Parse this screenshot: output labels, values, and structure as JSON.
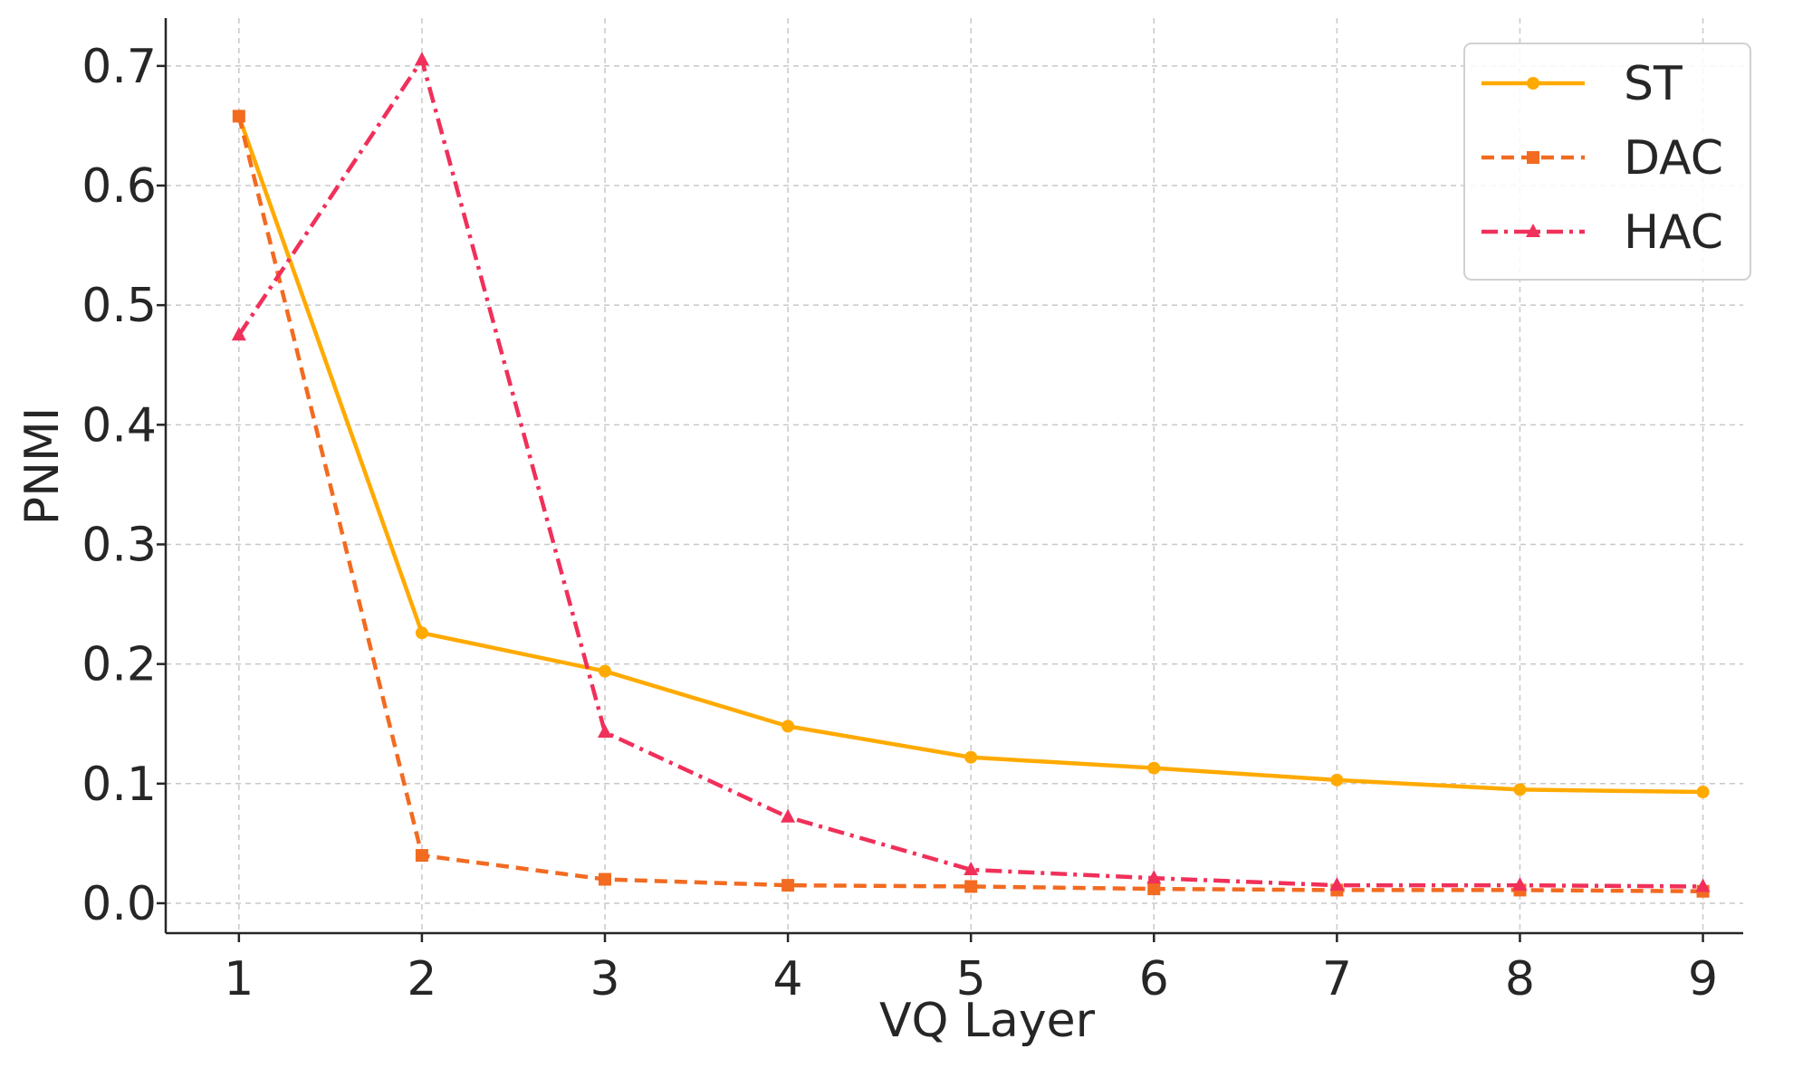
{
  "chart_data": {
    "type": "line",
    "title": "",
    "xlabel": "VQ Layer",
    "ylabel": "PNMI",
    "x": [
      1,
      2,
      3,
      4,
      5,
      6,
      7,
      8,
      9
    ],
    "xticks": [
      "1",
      "2",
      "3",
      "4",
      "5",
      "6",
      "7",
      "8",
      "9"
    ],
    "yticks": [
      "0.0",
      "0.1",
      "0.2",
      "0.3",
      "0.4",
      "0.5",
      "0.6",
      "0.7"
    ],
    "xlim": [
      0.6,
      9.22
    ],
    "ylim": [
      -0.025,
      0.74
    ],
    "grid": true,
    "legend_position": "top-right",
    "series": [
      {
        "name": "ST",
        "color": "#FFAA00",
        "line_style": "solid",
        "marker": "circle",
        "values": [
          0.658,
          0.226,
          0.194,
          0.148,
          0.122,
          0.113,
          0.103,
          0.095,
          0.093
        ]
      },
      {
        "name": "DAC",
        "color": "#F26B21",
        "line_style": "dashed",
        "marker": "square",
        "values": [
          0.658,
          0.04,
          0.02,
          0.015,
          0.014,
          0.012,
          0.011,
          0.011,
          0.01
        ]
      },
      {
        "name": "HAC",
        "color": "#F0305A",
        "line_style": "dashdot",
        "marker": "triangle",
        "values": [
          0.475,
          0.705,
          0.143,
          0.072,
          0.028,
          0.021,
          0.015,
          0.015,
          0.014
        ]
      }
    ]
  }
}
